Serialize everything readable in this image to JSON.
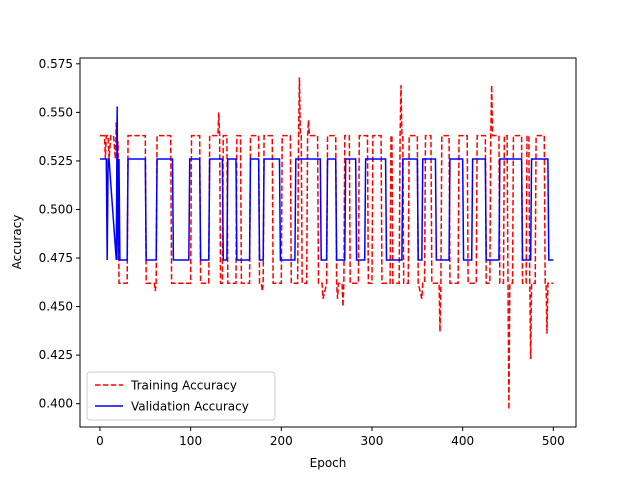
{
  "chart_data": {
    "type": "line",
    "title": "",
    "xlabel": "Epoch",
    "ylabel": "Accuracy",
    "xlim": [
      -22,
      525
    ],
    "ylim": [
      0.388,
      0.578
    ],
    "xticks": [
      0,
      100,
      200,
      300,
      400,
      500
    ],
    "xtick_labels": [
      "0",
      "100",
      "200",
      "300",
      "400",
      "500"
    ],
    "yticks": [
      0.4,
      0.425,
      0.45,
      0.475,
      0.5,
      0.525,
      0.55,
      0.575
    ],
    "ytick_labels": [
      "0.400",
      "0.425",
      "0.450",
      "0.475",
      "0.500",
      "0.525",
      "0.550",
      "0.575"
    ],
    "grid": false,
    "legend_position": "lower-left",
    "series": [
      {
        "name": "Training Accuracy",
        "color": "#ff0000",
        "style": "dashed",
        "x": [
          0,
          5,
          6,
          7,
          9,
          10,
          12,
          15,
          17,
          18,
          19,
          20,
          21,
          22,
          30,
          31,
          50,
          51,
          60,
          61,
          62,
          63,
          78,
          79,
          100,
          101,
          110,
          111,
          120,
          121,
          130,
          131,
          132,
          133,
          135,
          136,
          140,
          141,
          150,
          151,
          155,
          156,
          165,
          166,
          175,
          176,
          178,
          179,
          180,
          181,
          190,
          191,
          200,
          201,
          210,
          211,
          218,
          219,
          220,
          221,
          222,
          223,
          228,
          229,
          230,
          231,
          240,
          241,
          245,
          246,
          250,
          251,
          260,
          261,
          262,
          263,
          267,
          268,
          269,
          270,
          275,
          276,
          285,
          286,
          295,
          296,
          300,
          301,
          310,
          311,
          320,
          321,
          322,
          323,
          330,
          331,
          332,
          333,
          334,
          335,
          340,
          341,
          350,
          351,
          355,
          356,
          358,
          359,
          365,
          366,
          374,
          375,
          376,
          377,
          385,
          386,
          395,
          396,
          405,
          406,
          415,
          416,
          425,
          426,
          430,
          431,
          432,
          433,
          440,
          441,
          445,
          446,
          449,
          450,
          451,
          452,
          455,
          456,
          465,
          466,
          470,
          471,
          473,
          474,
          475,
          476,
          480,
          481,
          490,
          491,
          492,
          493,
          494,
          495,
          500
        ],
        "y": [
          0.538,
          0.538,
          0.526,
          0.538,
          0.538,
          0.526,
          0.538,
          0.538,
          0.526,
          0.545,
          0.532,
          0.535,
          0.462,
          0.462,
          0.462,
          0.538,
          0.538,
          0.462,
          0.462,
          0.458,
          0.462,
          0.538,
          0.538,
          0.462,
          0.462,
          0.538,
          0.538,
          0.462,
          0.462,
          0.538,
          0.538,
          0.55,
          0.538,
          0.462,
          0.462,
          0.538,
          0.538,
          0.462,
          0.462,
          0.538,
          0.538,
          0.462,
          0.462,
          0.538,
          0.538,
          0.462,
          0.462,
          0.458,
          0.462,
          0.538,
          0.538,
          0.462,
          0.462,
          0.538,
          0.538,
          0.462,
          0.462,
          0.538,
          0.568,
          0.538,
          0.538,
          0.462,
          0.462,
          0.538,
          0.546,
          0.538,
          0.538,
          0.462,
          0.462,
          0.454,
          0.462,
          0.538,
          0.538,
          0.462,
          0.454,
          0.462,
          0.462,
          0.45,
          0.462,
          0.538,
          0.538,
          0.462,
          0.462,
          0.538,
          0.538,
          0.462,
          0.462,
          0.538,
          0.538,
          0.462,
          0.462,
          0.538,
          0.538,
          0.462,
          0.462,
          0.538,
          0.564,
          0.538,
          0.538,
          0.462,
          0.462,
          0.538,
          0.538,
          0.462,
          0.454,
          0.462,
          0.462,
          0.538,
          0.538,
          0.462,
          0.462,
          0.437,
          0.462,
          0.538,
          0.538,
          0.462,
          0.462,
          0.538,
          0.538,
          0.462,
          0.462,
          0.538,
          0.538,
          0.462,
          0.462,
          0.538,
          0.564,
          0.538,
          0.538,
          0.462,
          0.462,
          0.538,
          0.538,
          0.462,
          0.397,
          0.462,
          0.462,
          0.538,
          0.538,
          0.462,
          0.462,
          0.538,
          0.538,
          0.462,
          0.423,
          0.462,
          0.462,
          0.538,
          0.538,
          0.462,
          0.462,
          0.436,
          0.462,
          0.462,
          0.462
        ]
      },
      {
        "name": "Validation Accuracy",
        "color": "#0000ff",
        "style": "solid",
        "x": [
          0,
          7,
          8,
          9,
          10,
          18,
          19,
          20,
          21,
          22,
          30,
          31,
          50,
          51,
          62,
          63,
          80,
          81,
          98,
          99,
          110,
          111,
          120,
          121,
          135,
          136,
          140,
          141,
          150,
          151,
          165,
          166,
          175,
          176,
          180,
          181,
          198,
          199,
          215,
          216,
          220,
          221,
          243,
          244,
          250,
          251,
          260,
          261,
          270,
          271,
          282,
          283,
          292,
          293,
          300,
          301,
          315,
          316,
          333,
          334,
          350,
          351,
          355,
          356,
          370,
          371,
          385,
          386,
          400,
          401,
          410,
          411,
          425,
          426,
          440,
          441,
          465,
          466,
          475,
          476,
          494,
          495,
          500
        ],
        "y": [
          0.526,
          0.526,
          0.474,
          0.526,
          0.526,
          0.474,
          0.553,
          0.474,
          0.526,
          0.474,
          0.474,
          0.526,
          0.526,
          0.474,
          0.474,
          0.526,
          0.526,
          0.474,
          0.474,
          0.526,
          0.526,
          0.474,
          0.474,
          0.526,
          0.526,
          0.474,
          0.474,
          0.526,
          0.526,
          0.474,
          0.474,
          0.526,
          0.526,
          0.474,
          0.474,
          0.526,
          0.526,
          0.474,
          0.474,
          0.526,
          0.526,
          0.526,
          0.526,
          0.474,
          0.474,
          0.526,
          0.526,
          0.474,
          0.474,
          0.526,
          0.526,
          0.474,
          0.474,
          0.526,
          0.526,
          0.526,
          0.526,
          0.474,
          0.474,
          0.526,
          0.526,
          0.474,
          0.474,
          0.526,
          0.526,
          0.474,
          0.474,
          0.526,
          0.526,
          0.474,
          0.474,
          0.526,
          0.526,
          0.474,
          0.474,
          0.526,
          0.526,
          0.474,
          0.474,
          0.526,
          0.526,
          0.474,
          0.474
        ]
      }
    ]
  }
}
